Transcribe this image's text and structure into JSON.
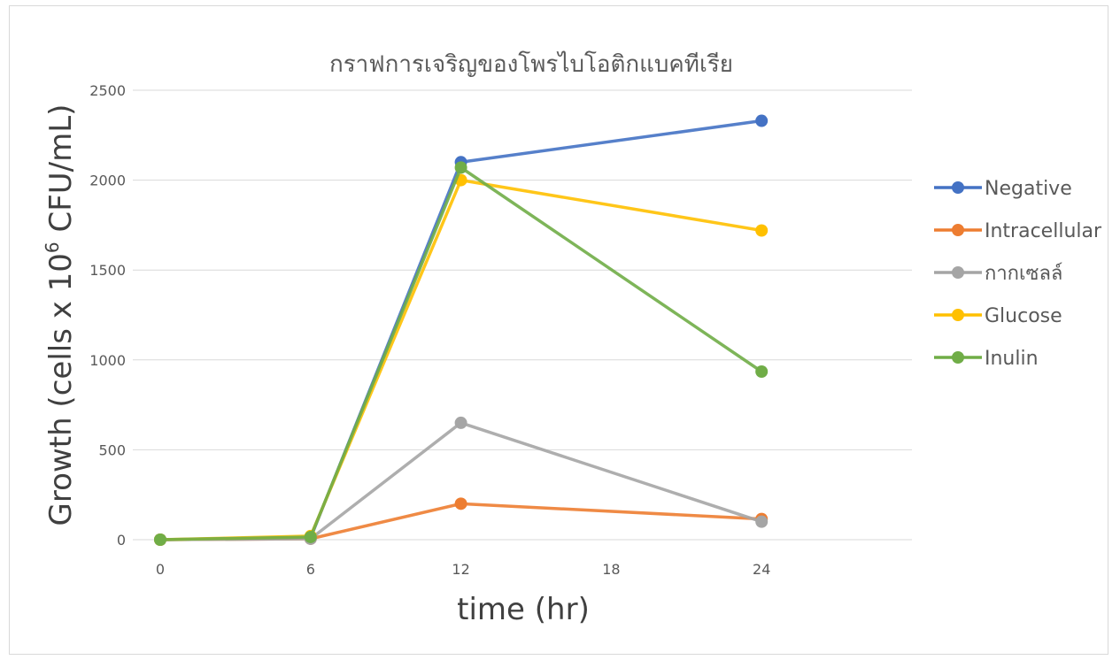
{
  "chart_data": {
    "type": "line",
    "title": "กราฟการเจริญของโพรไบโอติกแบคทีเรีย",
    "xlabel": "time (hr)",
    "ylabel_prefix": "Growth (cells x 10",
    "ylabel_sup": "6",
    "ylabel_suffix": " CFU/mL)",
    "x": [
      0,
      6,
      12,
      24
    ],
    "xlim": [
      0,
      30
    ],
    "xticks": [
      0,
      6,
      12,
      18,
      24
    ],
    "ylim": [
      0,
      2500
    ],
    "yticks": [
      0,
      500,
      1000,
      1500,
      2000,
      2500
    ],
    "grid": true,
    "legend_position": "right",
    "series": [
      {
        "name": "Negative",
        "color": "#4472C4",
        "values": [
          0,
          10,
          2100,
          2330
        ]
      },
      {
        "name": "Intracellular",
        "color": "#ED7D31",
        "values": [
          0,
          5,
          200,
          115
        ]
      },
      {
        "name": "กากเซลล์",
        "color": "#A5A5A5",
        "values": [
          0,
          5,
          650,
          100
        ]
      },
      {
        "name": "Glucose",
        "color": "#FFC000",
        "values": [
          0,
          20,
          2000,
          1720
        ]
      },
      {
        "name": "Inulin",
        "color": "#70AD47",
        "values": [
          0,
          15,
          2070,
          935
        ]
      }
    ]
  }
}
